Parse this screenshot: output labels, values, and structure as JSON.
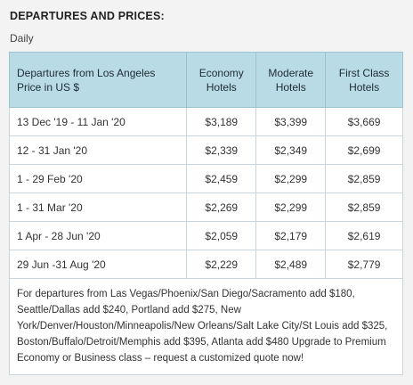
{
  "section": {
    "title": "DEPARTURES AND PRICES:",
    "frequency": "Daily"
  },
  "table": {
    "header": {
      "col1_line1": "Departures from Los Angeles",
      "col1_line2": "Price in US $",
      "col2_line1": "Economy",
      "col2_line2": "Hotels",
      "col3_line1": "Moderate",
      "col3_line2": "Hotels",
      "col4_line1": "First Class",
      "col4_line2": "Hotels"
    },
    "rows": [
      {
        "dates": "13 Dec '19 - 11 Jan '20",
        "economy": "$3,189",
        "moderate": "$3,399",
        "first_class": "$3,669"
      },
      {
        "dates": "12 - 31 Jan '20",
        "economy": "$2,339",
        "moderate": "$2,349",
        "first_class": "$2,699"
      },
      {
        "dates": "1 - 29 Feb '20",
        "economy": "$2,459",
        "moderate": "$2,299",
        "first_class": "$2,859"
      },
      {
        "dates": "1 - 31 Mar '20",
        "economy": "$2,269",
        "moderate": "$2,299",
        "first_class": "$2,859"
      },
      {
        "dates": "1 Apr - 28 Jun '20",
        "economy": "$2,059",
        "moderate": "$2,179",
        "first_class": "$2,619"
      },
      {
        "dates": "29 Jun -31 Aug '20",
        "economy": "$2,229",
        "moderate": "$2,489",
        "first_class": "$2,779"
      }
    ],
    "note": "For departures from Las Vegas/Phoenix/San Diego/Sacramento add $180, Seattle/Dallas add $240, Portland add $275, New York/Denver/Houston/Minneapolis/New Orleans/Salt Lake City/St Louis add $325, Boston/Buffalo/Detroit/Memphis add $395, Atlanta add $480 Upgrade to Premium Economy or Business class – request a customized quote now!"
  },
  "colors": {
    "header_background": "#b9dbe6",
    "page_background": "#f3f3f3"
  }
}
